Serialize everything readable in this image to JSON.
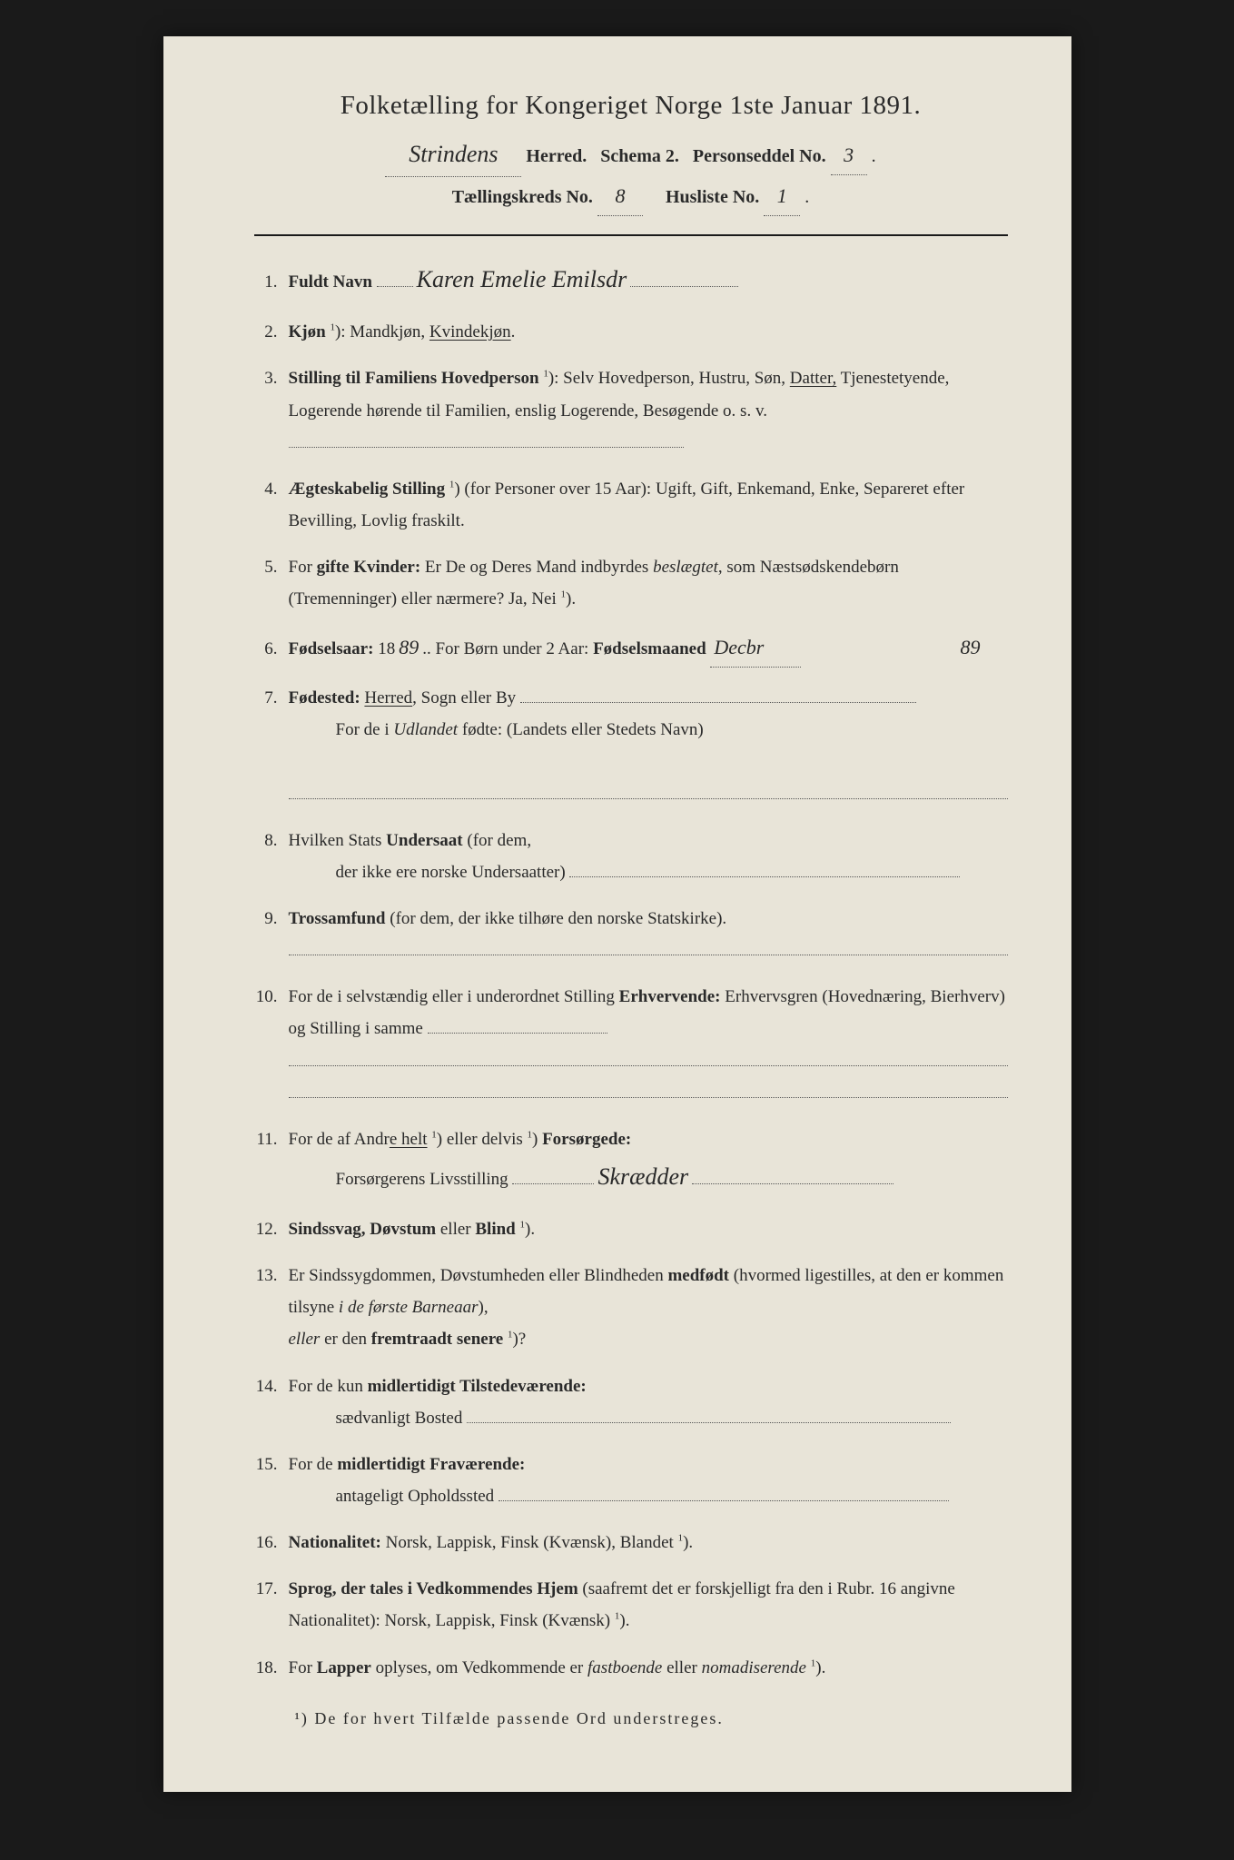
{
  "colors": {
    "page_bg": "#e8e4d8",
    "text": "#2a2a2a",
    "body_bg": "#1a1a1a",
    "dotted": "#555555",
    "rule": "#1a1a1a"
  },
  "fonts": {
    "body_family": "Georgia, 'Times New Roman', serif",
    "script_family": "'Brush Script MT', cursive",
    "title_size_pt": 22,
    "body_size_pt": 14
  },
  "header": {
    "title": "Folketælling for Kongeriget Norge 1ste Januar 1891.",
    "herred_hw": "Strindens",
    "herred_label": "Herred.",
    "schema_label": "Schema 2.",
    "person_no_label": "Personseddel No.",
    "person_no_hw": "3",
    "taelling_label": "Tællingskreds No.",
    "taelling_hw": "8",
    "husliste_label": "Husliste No.",
    "husliste_hw": "1"
  },
  "entries": [
    {
      "n": "1.",
      "label": "Fuldt Navn",
      "hw": "Karen Emelie Emilsdr",
      "trail_dots": true
    },
    {
      "n": "2.",
      "html": "<b>Kjøn</b> <span class='sup'>1</span>): Mandkjøn, <span class='underline'>Kvindekjøn</span>."
    },
    {
      "n": "3.",
      "html": "<b>Stilling til Familiens Hovedperson</b> <span class='sup'>1</span>): Selv Hovedperson, Hustru, Søn, <span class='underline'>Datter,</span> Tjenestetyende, Logerende hørende til Familien, enslig Logerende, Besøgende o. s. v. <span class='dotted-fill' style='width:55%'></span>"
    },
    {
      "n": "4.",
      "html": "<b>Ægteskabelig Stilling</b> <span class='sup'>1</span>) (for Personer over 15 Aar): Ugift, Gift, Enkemand, Enke, Separeret efter Bevilling, Lovlig fraskilt."
    },
    {
      "n": "5.",
      "html": "For <b>gifte Kvinder:</b> Er De og Deres Mand indbyrdes <i>beslægtet</i>, som Næstsødskendebørn (Tremenninger) eller nærmere? Ja, Nei <span class='sup'>1</span>)."
    },
    {
      "n": "6.",
      "html": "<b>Fødselsaar:</b> 18<span class='handwritten-sm'>89</span>.. For Børn under 2 Aar: <b>Fødselsmaaned</b> <span class='handwritten-sm dotted-line'>Decbr</span>",
      "margin_hw": "89"
    },
    {
      "n": "7.",
      "html": "<b>Fødested:</b> <span class='underline'>Herred</span>, Sogn eller By <span class='dotted-fill' style='width:55%'></span><span class='indent'>For de i <i>Udlandet</i> fødte: (Landets eller Stedets Navn)</span><br><span class='dotted-fill'></span>"
    },
    {
      "n": "8.",
      "html": "Hvilken Stats <b>Undersaat</b> (for dem,<br><span class='indent'>der ikke ere norske Undersaatter) <span class='dotted-fill' style='width:58%'></span></span>"
    },
    {
      "n": "9.",
      "html": "<b>Trossamfund</b> (for dem, der ikke tilhøre den norske Statskirke).<br><span class='dotted-fill'></span>"
    },
    {
      "n": "10.",
      "html": "For de i selvstændig eller i underordnet Stilling <b>Erhvervende:</b> Erhvervsgren (Hovednæring, Bierhverv) og Stilling i samme <span class='dotted-fill' style='width:25%'></span><br><span class='dotted-fill'></span><br><span class='dotted-fill'></span>"
    },
    {
      "n": "11.",
      "html": "For de af Andr<span class='underline'>e helt</span> <span class='sup'>1</span>) eller delvis <span class='sup'>1</span>) <b>Forsørgede:</b><br><span class='indent'>Forsørgerens Livsstilling <span class='dotted-line' style='min-width:90px'></span><span class='handwritten'>Skrædder</span><span class='dotted-fill' style='width:30%'></span></span>"
    },
    {
      "n": "12.",
      "html": "<b>Sindssvag, Døvstum</b> eller <b>Blind</b> <span class='sup'>1</span>)."
    },
    {
      "n": "13.",
      "html": "Er Sindssygdommen, Døvstumheden eller Blindheden <b>medfødt</b> (hvormed ligestilles, at den er kommen tilsyne <i>i de første Barneaar</i>),<br><i>eller</i> er den <b>fremtraadt senere</b> <span class='sup'>1</span>)?"
    },
    {
      "n": "14.",
      "html": "For de kun <b>midlertidigt Tilstedeværende:</b><br><span class='indent'>sædvanligt Bosted <span class='dotted-fill' style='width:72%'></span></span>"
    },
    {
      "n": "15.",
      "html": "For de <b>midlertidigt Fraværende:</b><br><span class='indent'>antageligt Opholdssted <span class='dotted-fill' style='width:67%'></span></span>"
    },
    {
      "n": "16.",
      "html": "<b>Nationalitet:</b> Norsk, Lappisk, Finsk (Kvænsk), Blandet <span class='sup'>1</span>)."
    },
    {
      "n": "17.",
      "html": "<b>Sprog, der tales i Vedkommendes Hjem</b> (saafremt det er forskjelligt fra den i Rubr. 16 angivne Nationalitet): Norsk, Lappisk, Finsk (Kvænsk) <span class='sup'>1</span>)."
    },
    {
      "n": "18.",
      "html": "For <b>Lapper</b> oplyses, om Vedkommende er <i>fastboende</i> eller <i>nomadiserende</i> <span class='sup'>1</span>)."
    }
  ],
  "footnote": "¹) De for hvert Tilfælde passende Ord understreges."
}
